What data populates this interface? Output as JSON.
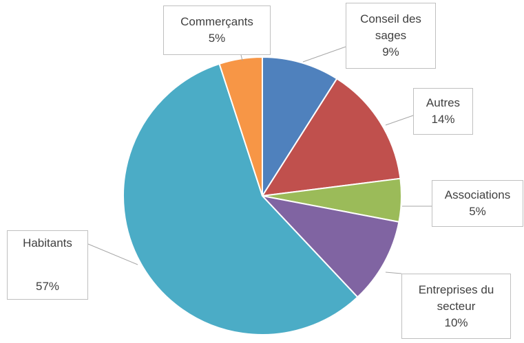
{
  "chart_data": {
    "type": "pie",
    "categories": [
      "Conseil des sages",
      "Autres",
      "Associations",
      "Entreprises du secteur",
      "Habitants",
      "Commerçants"
    ],
    "values": [
      9,
      14,
      5,
      10,
      57,
      5
    ],
    "value_labels": [
      "9%",
      "14%",
      "5%",
      "10%",
      "57%",
      "5%"
    ],
    "colors": [
      "#4f81bd",
      "#c0504d",
      "#9bbb59",
      "#8064a2",
      "#4bacc6",
      "#f79646"
    ]
  }
}
